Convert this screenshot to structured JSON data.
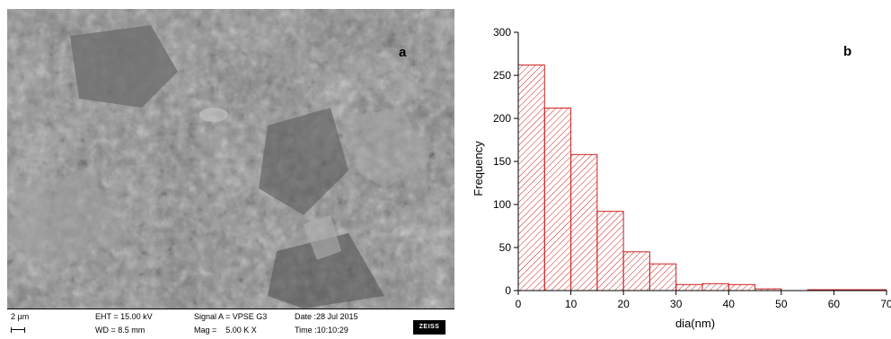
{
  "panel_a": {
    "label": "a",
    "info": {
      "scale": "2 µm",
      "eht": "EHT = 15.00 kV",
      "wd": "WD = 8.5 mm",
      "signal": "Signal A = VPSE G3",
      "mag": "Mag =    5.00 K X",
      "date": "Date :28 Jul 2015",
      "time": "Time :10:10:29",
      "logo": "ZEISS"
    }
  },
  "chart_data": {
    "type": "bar",
    "panel_label": "b",
    "xlabel": "dia(nm)",
    "ylabel": "Frequency",
    "xlim": [
      0,
      70
    ],
    "ylim": [
      0,
      300
    ],
    "xticks": [
      0,
      10,
      20,
      30,
      40,
      50,
      60,
      70
    ],
    "yticks": [
      0,
      50,
      100,
      150,
      200,
      250,
      300
    ],
    "bin_width": 5,
    "bins": [
      {
        "start": 0,
        "value": 262
      },
      {
        "start": 5,
        "value": 212
      },
      {
        "start": 10,
        "value": 158
      },
      {
        "start": 15,
        "value": 92
      },
      {
        "start": 20,
        "value": 45
      },
      {
        "start": 25,
        "value": 31
      },
      {
        "start": 30,
        "value": 7
      },
      {
        "start": 35,
        "value": 8
      },
      {
        "start": 40,
        "value": 7
      },
      {
        "start": 45,
        "value": 2
      },
      {
        "start": 50,
        "value": 0
      },
      {
        "start": 55,
        "value": 1
      },
      {
        "start": 60,
        "value": 1
      },
      {
        "start": 65,
        "value": 1
      }
    ],
    "bar_color": "#cc2222",
    "hatch": "diagonal"
  }
}
